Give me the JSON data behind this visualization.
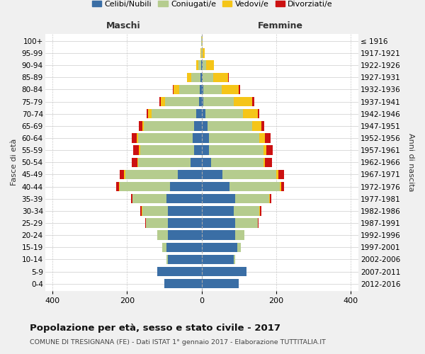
{
  "age_groups": [
    "0-4",
    "5-9",
    "10-14",
    "15-19",
    "20-24",
    "25-29",
    "30-34",
    "35-39",
    "40-44",
    "45-49",
    "50-54",
    "55-59",
    "60-64",
    "65-69",
    "70-74",
    "75-79",
    "80-84",
    "85-89",
    "90-94",
    "95-99",
    "100+"
  ],
  "birth_years": [
    "2012-2016",
    "2007-2011",
    "2002-2006",
    "1997-2001",
    "1992-1996",
    "1987-1991",
    "1982-1986",
    "1977-1981",
    "1972-1976",
    "1967-1971",
    "1962-1966",
    "1957-1961",
    "1952-1956",
    "1947-1951",
    "1942-1946",
    "1937-1941",
    "1932-1936",
    "1927-1931",
    "1922-1926",
    "1917-1921",
    "≤ 1916"
  ],
  "males": {
    "celibi": [
      100,
      120,
      90,
      95,
      90,
      90,
      90,
      95,
      85,
      65,
      30,
      20,
      25,
      20,
      15,
      8,
      5,
      3,
      2,
      0,
      0
    ],
    "coniugati": [
      0,
      0,
      5,
      10,
      30,
      60,
      70,
      90,
      135,
      140,
      140,
      145,
      145,
      135,
      120,
      90,
      55,
      25,
      8,
      2,
      1
    ],
    "vedovi": [
      0,
      0,
      0,
      0,
      0,
      0,
      1,
      1,
      2,
      3,
      3,
      3,
      5,
      5,
      8,
      12,
      15,
      12,
      5,
      1,
      0
    ],
    "divorziati": [
      0,
      0,
      0,
      0,
      0,
      2,
      3,
      4,
      8,
      12,
      15,
      15,
      12,
      8,
      5,
      3,
      2,
      0,
      0,
      0,
      0
    ]
  },
  "females": {
    "nubili": [
      100,
      120,
      85,
      95,
      90,
      90,
      85,
      90,
      75,
      55,
      25,
      20,
      20,
      15,
      10,
      5,
      4,
      3,
      2,
      0,
      0
    ],
    "coniugate": [
      0,
      0,
      5,
      10,
      25,
      60,
      70,
      90,
      135,
      145,
      140,
      145,
      135,
      120,
      100,
      80,
      50,
      28,
      10,
      3,
      1
    ],
    "vedove": [
      0,
      0,
      0,
      0,
      0,
      0,
      1,
      2,
      3,
      5,
      5,
      8,
      15,
      25,
      40,
      50,
      45,
      40,
      20,
      5,
      1
    ],
    "divorziate": [
      0,
      0,
      0,
      0,
      0,
      2,
      3,
      5,
      8,
      15,
      18,
      18,
      15,
      8,
      5,
      5,
      3,
      1,
      0,
      0,
      0
    ]
  },
  "colors": {
    "celibi": "#3a6ea5",
    "coniugati": "#b5cc8e",
    "vedovi": "#f5c518",
    "divorziati": "#cc1111"
  },
  "legend_labels": [
    "Celibi/Nubili",
    "Coniugati/e",
    "Vedovi/e",
    "Divorziati/e"
  ],
  "xlim": 420,
  "xticks": [
    -400,
    -200,
    0,
    200,
    400
  ],
  "xtick_labels": [
    "400",
    "200",
    "0",
    "200",
    "400"
  ],
  "title": "Popolazione per età, sesso e stato civile - 2017",
  "subtitle": "COMUNE DI TRESIGNANA (FE) - Dati ISTAT 1° gennaio 2017 - Elaborazione TUTTITALIA.IT",
  "ylabel_left": "Fasce di età",
  "ylabel_right": "Anni di nascita",
  "label_maschi": "Maschi",
  "label_femmine": "Femmine",
  "bg_color": "#f0f0f0",
  "plot_bg": "#ffffff",
  "bar_height": 0.78
}
